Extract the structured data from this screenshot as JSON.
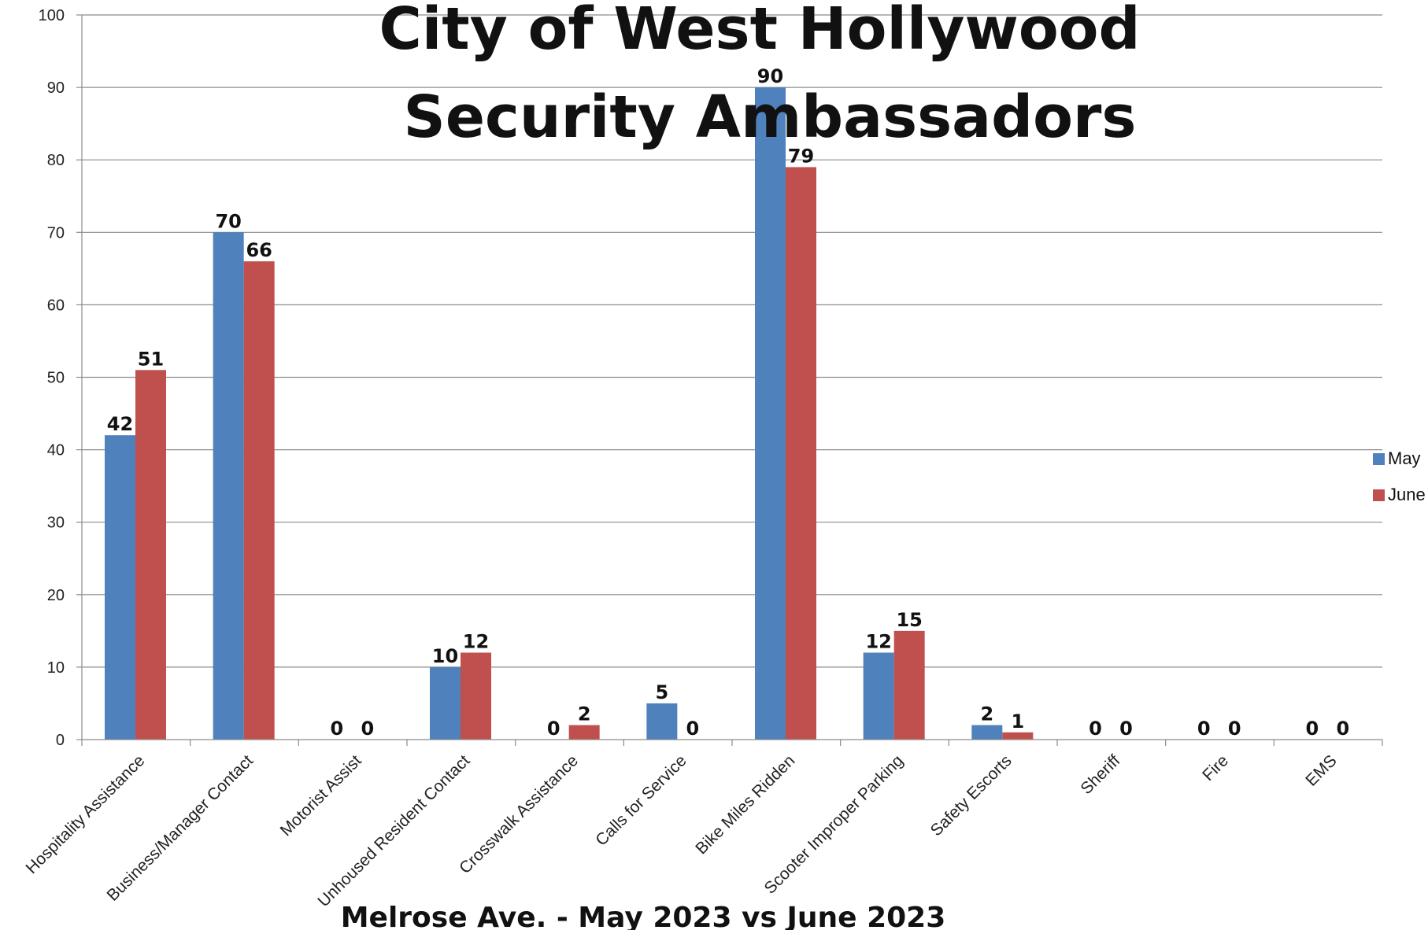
{
  "chart_data": {
    "type": "bar",
    "title": [
      "City of West Hollywood",
      "Security Ambassadors"
    ],
    "subtitle": "Melrose Ave. - May 2023 vs June 2023",
    "categories": [
      "Hospitality Assistance",
      "Business/Manager Contact",
      "Motorist Assist",
      "Unhoused Resident Contact",
      "Crosswalk Assistance",
      "Calls for Service",
      "Bike Miles Ridden",
      "Scooter Improper Parking",
      "Safety Escorts",
      "Sheriff",
      "Fire",
      "EMS"
    ],
    "series": [
      {
        "name": "May",
        "color": "#4f81bd",
        "values": [
          42,
          70,
          0,
          10,
          0,
          5,
          90,
          12,
          2,
          0,
          0,
          0
        ]
      },
      {
        "name": "June",
        "color": "#c0504d",
        "values": [
          51,
          66,
          0,
          12,
          2,
          0,
          79,
          15,
          1,
          0,
          0,
          0
        ]
      }
    ],
    "ylim": [
      0,
      100
    ],
    "yticks": [
      0,
      10,
      20,
      30,
      40,
      50,
      60,
      70,
      80,
      90,
      100
    ],
    "grid": true,
    "legend_position": "right"
  }
}
